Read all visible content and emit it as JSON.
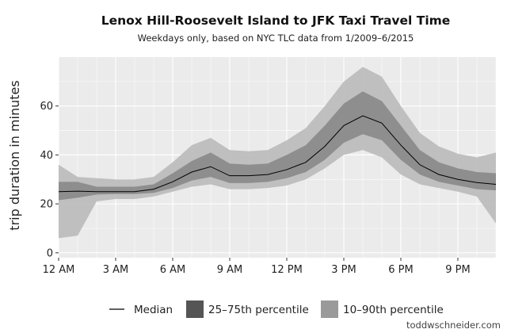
{
  "chart_data": {
    "type": "area",
    "title": "Lenox Hill-Roosevelt Island to JFK Taxi Travel Time",
    "subtitle": "Weekdays only, based on NYC TLC data from 1/2009–6/2015",
    "xlabel": "",
    "ylabel": "trip duration in minutes",
    "x": [
      0,
      1,
      2,
      3,
      4,
      5,
      6,
      7,
      8,
      9,
      10,
      11,
      12,
      13,
      14,
      15,
      16,
      17,
      18,
      19,
      20,
      21,
      22,
      23
    ],
    "x_ticks": [
      0,
      3,
      6,
      9,
      12,
      15,
      18,
      21
    ],
    "x_tick_labels": [
      "12 AM",
      "3 AM",
      "6 AM",
      "9 AM",
      "12 PM",
      "3 PM",
      "6 PM",
      "9 PM"
    ],
    "xlim": [
      0,
      23
    ],
    "y_ticks": [
      0,
      20,
      40,
      60
    ],
    "y_tick_labels": [
      "0",
      "20",
      "40",
      "60"
    ],
    "ylim": [
      -2,
      80
    ],
    "grid": true,
    "legend_position": "bottom",
    "series": [
      {
        "name": "Median",
        "values": [
          25,
          25.2,
          25,
          25,
          25,
          26,
          29,
          33,
          35.2,
          31.5,
          31.5,
          32,
          34,
          37,
          43.5,
          52,
          56,
          53,
          44,
          36,
          32,
          30,
          28.7,
          28
        ]
      },
      {
        "name": "25–75th percentile",
        "lower": [
          21.5,
          22.5,
          23.8,
          24,
          24,
          24.5,
          26.5,
          29.5,
          31,
          28.5,
          28.5,
          29,
          30.5,
          33,
          38,
          45,
          48.5,
          46,
          38,
          32,
          29,
          27.5,
          26,
          25.5
        ],
        "upper": [
          29,
          29,
          27,
          27,
          27,
          28,
          32.5,
          37.5,
          41,
          36.5,
          36,
          36.5,
          40,
          44,
          52,
          61,
          66,
          62,
          52,
          42,
          37,
          34.5,
          33,
          32.5
        ]
      },
      {
        "name": "10–90th percentile",
        "lower": [
          6,
          7,
          21,
          22,
          22,
          23,
          25,
          27,
          28,
          26,
          26,
          26.5,
          27.5,
          30,
          34.5,
          40,
          42,
          39,
          32,
          28,
          26.5,
          25,
          23,
          12
        ],
        "upper": [
          36,
          31,
          30.5,
          30,
          30,
          31,
          37,
          44,
          47,
          42,
          41.5,
          42,
          46,
          51,
          60,
          70,
          76,
          72,
          60,
          49,
          43.5,
          40.5,
          39,
          41
        ]
      }
    ],
    "colors": {
      "median": "#000000",
      "band_25_75": "#666666",
      "band_10_90": "#bdbdbd",
      "panel_background": "#ebebeb",
      "grid": "#ffffff"
    }
  },
  "legend": {
    "median_label": "Median",
    "band_25_75_label": "25–75th percentile",
    "band_10_90_label": "10–90th percentile"
  },
  "credit": "toddwschneider.com"
}
